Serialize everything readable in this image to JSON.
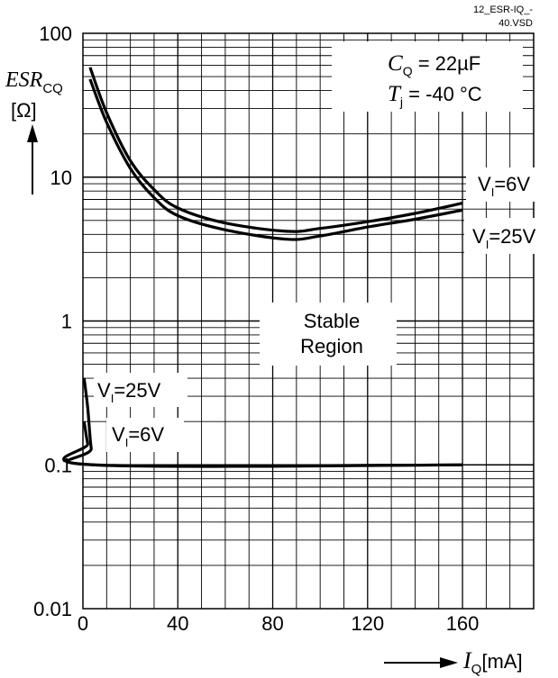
{
  "file_tag_line1": "12_ESR-IQ_-",
  "file_tag_line2": "40.VSD",
  "chart_data": {
    "type": "line",
    "title": "",
    "y_scale": "log",
    "xlim": [
      0,
      190
    ],
    "ylim": [
      0.01,
      100
    ],
    "x_ticks": [
      "0",
      "40",
      "80",
      "120",
      "160"
    ],
    "y_ticks": [
      "100",
      "10",
      "1",
      "0.1",
      "0.01"
    ],
    "ylabel": {
      "main": "ESR",
      "sub": "CQ",
      "unit": "[Ω]"
    },
    "xlabel": {
      "main": "I",
      "sub": "Q",
      "unit": "[mA]"
    },
    "conditions": [
      {
        "var": "C",
        "sub": "Q",
        "value": " = 22µF"
      },
      {
        "var": "T",
        "sub": "j",
        "value": " = -40 °C"
      }
    ],
    "region_label": [
      "Stable",
      "Region"
    ],
    "series": [
      {
        "name": "VI=6V (upper limit)",
        "label_text": "V",
        "label_sub": "I",
        "label_value": "=6V",
        "points": [
          [
            3,
            58
          ],
          [
            10,
            28
          ],
          [
            20,
            13
          ],
          [
            30,
            8.2
          ],
          [
            40,
            6.1
          ],
          [
            60,
            4.8
          ],
          [
            86,
            4.2
          ],
          [
            100,
            4.4
          ],
          [
            120,
            4.9
          ],
          [
            140,
            5.6
          ],
          [
            160,
            6.6
          ]
        ]
      },
      {
        "name": "VI=25V (upper limit)",
        "label_text": "V",
        "label_sub": "I",
        "label_value": "=25V",
        "points": [
          [
            3,
            48
          ],
          [
            10,
            24
          ],
          [
            20,
            11.5
          ],
          [
            30,
            7.2
          ],
          [
            40,
            5.4
          ],
          [
            60,
            4.3
          ],
          [
            86,
            3.7
          ],
          [
            100,
            3.9
          ],
          [
            120,
            4.5
          ],
          [
            140,
            5.1
          ],
          [
            160,
            5.9
          ]
        ]
      },
      {
        "name": "VI=25V (lower limit)",
        "label_text": "V",
        "label_sub": "I",
        "label_value": "=25V",
        "points": [
          [
            0.5,
            0.4
          ],
          [
            2,
            0.25
          ],
          [
            3.5,
            0.13
          ],
          [
            5.5,
            0.1
          ],
          [
            160,
            0.1
          ]
        ]
      },
      {
        "name": "VI=6V (lower limit)",
        "label_text": "V",
        "label_sub": "I",
        "label_value": "=6V",
        "points": [
          [
            0.5,
            0.2
          ],
          [
            2,
            0.14
          ],
          [
            4,
            0.1
          ],
          [
            160,
            0.1
          ]
        ]
      }
    ]
  }
}
